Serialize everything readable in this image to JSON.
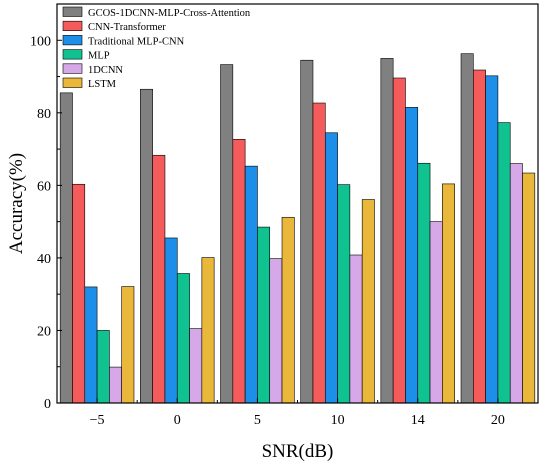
{
  "chart_data": {
    "type": "bar",
    "categories": [
      "−5",
      "0",
      "5",
      "10",
      "14",
      "20"
    ],
    "xlabel": "SNR(dB)",
    "ylabel": "Accuracy(%)",
    "ylim": [
      0,
      110
    ],
    "yticks": [
      0,
      20,
      40,
      60,
      80,
      100
    ],
    "grid": false,
    "legend_position": "top-left",
    "series": [
      {
        "name": "GCOS-1DCNN-MLP-Cross-Attention",
        "color": "#808080",
        "values": [
          85.5,
          86.5,
          93.3,
          94.5,
          95.0,
          96.3
        ]
      },
      {
        "name": "CNN-Transformer",
        "color": "#f65b5b",
        "values": [
          60.3,
          68.3,
          72.7,
          82.7,
          89.6,
          91.8
        ]
      },
      {
        "name": "Traditional MLP-CNN",
        "color": "#1e8fe8",
        "values": [
          32.0,
          45.5,
          65.3,
          74.5,
          81.5,
          90.2
        ]
      },
      {
        "name": "MLP",
        "color": "#10c290",
        "values": [
          20.0,
          35.7,
          48.5,
          60.2,
          66.1,
          77.3
        ]
      },
      {
        "name": "1DCNN",
        "color": "#d6a8e8",
        "values": [
          9.9,
          20.5,
          39.8,
          40.8,
          50.0,
          66.0
        ]
      },
      {
        "name": "LSTM",
        "color": "#e9b83a",
        "values": [
          32.1,
          40.1,
          51.2,
          56.1,
          60.4,
          63.4
        ]
      }
    ]
  }
}
